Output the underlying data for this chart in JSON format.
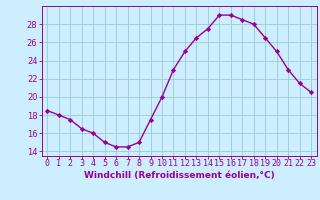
{
  "x": [
    0,
    1,
    2,
    3,
    4,
    5,
    6,
    7,
    8,
    9,
    10,
    11,
    12,
    13,
    14,
    15,
    16,
    17,
    18,
    19,
    20,
    21,
    22,
    23
  ],
  "y": [
    18.5,
    18.0,
    17.5,
    16.5,
    16.0,
    15.0,
    14.5,
    14.5,
    15.0,
    17.5,
    20.0,
    23.0,
    25.0,
    26.5,
    27.5,
    29.0,
    29.0,
    28.5,
    28.0,
    26.5,
    25.0,
    23.0,
    21.5,
    20.5
  ],
  "line_color": "#990099",
  "marker": "D",
  "marker_size": 2.2,
  "bg_color": "#cceeff",
  "grid_color": "#99cccc",
  "xlabel": "Windchill (Refroidissement éolien,°C)",
  "xlim": [
    -0.5,
    23.5
  ],
  "ylim": [
    13.5,
    30.0
  ],
  "yticks": [
    14,
    16,
    18,
    20,
    22,
    24,
    26,
    28
  ],
  "xtick_labels": [
    "0",
    "1",
    "2",
    "3",
    "4",
    "5",
    "6",
    "7",
    "8",
    "9",
    "10",
    "11",
    "12",
    "13",
    "14",
    "15",
    "16",
    "17",
    "18",
    "19",
    "20",
    "21",
    "22",
    "23"
  ],
  "label_fontsize": 6.5,
  "tick_fontsize": 6.0
}
